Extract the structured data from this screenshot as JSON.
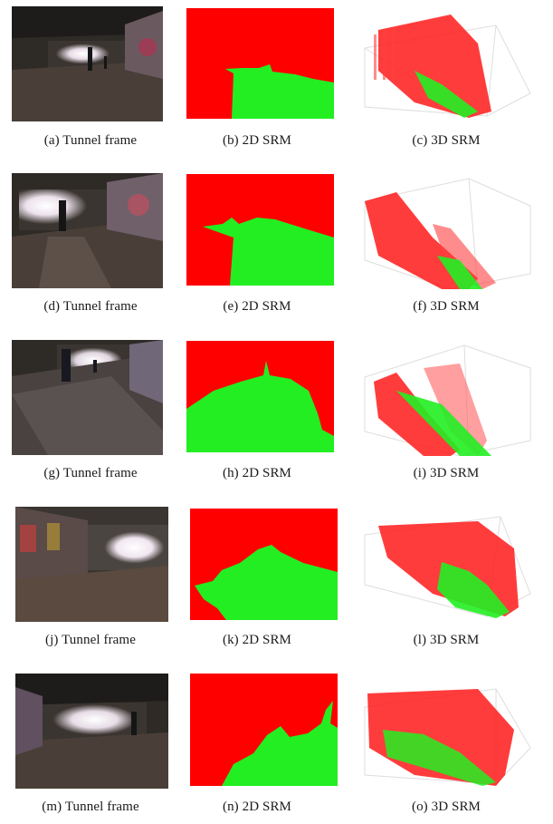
{
  "figure": {
    "rows": [
      {
        "captions": [
          "(a) Tunnel frame",
          "(b) 2D SRM",
          "(c) 3D SRM"
        ]
      },
      {
        "captions": [
          "(d) Tunnel frame",
          "(e) 2D SRM",
          "(f) 3D SRM"
        ]
      },
      {
        "captions": [
          "(g) Tunnel frame",
          "(h) 2D SRM",
          "(i) 3D SRM"
        ]
      },
      {
        "captions": [
          "(j) Tunnel frame",
          "(k) 2D SRM",
          "(l) 3D SRM"
        ]
      },
      {
        "captions": [
          "(m) Tunnel frame",
          "(n) 2D SRM",
          "(o) 3D SRM"
        ]
      }
    ],
    "colors": {
      "srm_red": "#ff0000",
      "srm_green": "#22ee22",
      "tunnel_dark": "#2e2a26",
      "tunnel_light": "#f4f0f4"
    }
  }
}
